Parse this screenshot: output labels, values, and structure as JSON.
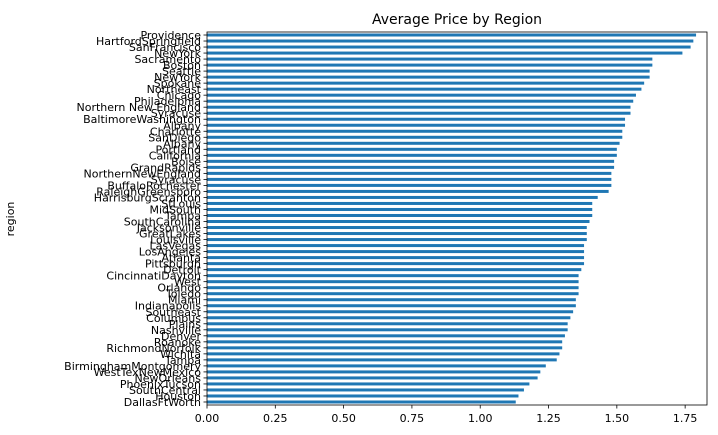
{
  "chart_data": {
    "type": "bar",
    "orientation": "horizontal",
    "title": "Average Price by Region",
    "xlabel": "",
    "ylabel": "region",
    "xlim": [
      0,
      1.83
    ],
    "xticks": [
      "0.00",
      "0.25",
      "0.50",
      "0.75",
      "1.00",
      "1.25",
      "1.50",
      "1.75"
    ],
    "bar_color": "#1f77b4",
    "grid": false,
    "categories": [
      "Providence",
      "HartfordSpringfield",
      "SanFrancisco",
      "NewYork",
      "Sacramento",
      "Boston",
      "Seattle",
      "NewYork",
      "Spokane",
      "Northeast",
      "Chicago",
      "Philadelphia",
      "Northern New England",
      "Syracuse",
      "BaltimoreWashington",
      "Albany",
      "Charlotte",
      "SanDiego",
      "Albany",
      "Portland",
      "California",
      "Boise",
      "GrandRapids",
      "NorthernNewEngland",
      "Syracuse",
      "BuffaloRochester",
      "RaleighGreensboro",
      "HarrisburgScranton",
      "StLouis",
      "MidSouth",
      "Tampa",
      "SouthCarolina",
      "Jacksonville",
      "GreatLakes",
      "Louisville",
      "LasVegas",
      "LosAngeles",
      "Atlanta",
      "Pittsburgh",
      "Detroit",
      "CincinnatiDayton",
      "West",
      "Orlando",
      "Toledo",
      "Miami",
      "Indianapolis",
      "Southeast",
      "Columbus",
      "Plains",
      "Nashville",
      "Denver",
      "Roanoke",
      "RichmondNorfolk",
      "Wichita",
      "Tampa",
      "BirminghamMontgomery",
      "WestTexNewMexico",
      "NewOrleans",
      "PhoenixTucson",
      "SouthCentral",
      "Houston",
      "DallasFtWorth"
    ],
    "values": [
      1.79,
      1.78,
      1.77,
      1.74,
      1.63,
      1.63,
      1.62,
      1.62,
      1.6,
      1.59,
      1.57,
      1.56,
      1.55,
      1.55,
      1.53,
      1.53,
      1.52,
      1.52,
      1.51,
      1.5,
      1.5,
      1.49,
      1.49,
      1.48,
      1.48,
      1.48,
      1.47,
      1.43,
      1.41,
      1.41,
      1.41,
      1.4,
      1.39,
      1.39,
      1.39,
      1.38,
      1.38,
      1.38,
      1.38,
      1.37,
      1.36,
      1.36,
      1.36,
      1.36,
      1.35,
      1.35,
      1.34,
      1.33,
      1.32,
      1.32,
      1.31,
      1.3,
      1.3,
      1.29,
      1.28,
      1.24,
      1.22,
      1.21,
      1.18,
      1.16,
      1.14,
      1.13
    ]
  }
}
